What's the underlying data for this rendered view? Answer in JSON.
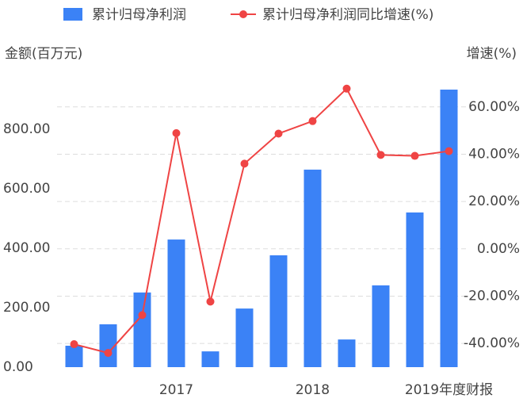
{
  "chart_data": {
    "type": "bar-line",
    "y_label": "金额(百万元)",
    "y2_label": "增速(%)",
    "categories": [
      null,
      null,
      null,
      "2017",
      null,
      null,
      null,
      "2018",
      null,
      null,
      null,
      "2019年度财报"
    ],
    "series": [
      {
        "name": "累计归母净利润",
        "type": "bar",
        "color": "#3b82f6",
        "values": [
          72,
          144,
          251,
          429,
          53,
          197,
          376,
          664,
          93,
          275,
          520,
          933
        ]
      },
      {
        "name": "累计归母净利润同比增速(%)",
        "type": "line",
        "color": "#ef4444",
        "axis": "y2",
        "values": [
          -40.3,
          -44,
          -28,
          48.9,
          -22.3,
          36,
          48.7,
          54,
          67.7,
          39.7,
          39.3,
          41.3
        ]
      }
    ],
    "ylim": [
      0,
      941
    ],
    "yticks": [
      {
        "value": 0,
        "label": "0.00"
      },
      {
        "value": 200,
        "label": "200.00"
      },
      {
        "value": 400,
        "label": "400.00"
      },
      {
        "value": 600,
        "label": "600.00"
      },
      {
        "value": 800,
        "label": "800.00"
      }
    ],
    "y2lim": [
      -50,
      68.3
    ],
    "y2ticks": [
      {
        "value": -40,
        "label": "-40.00%"
      },
      {
        "value": -20,
        "label": "-20.00%"
      },
      {
        "value": 0,
        "label": "0.00%"
      },
      {
        "value": 20,
        "label": "20.00%"
      },
      {
        "value": 40,
        "label": "40.00%"
      },
      {
        "value": 60,
        "label": "60.00%"
      }
    ],
    "grid": true
  }
}
